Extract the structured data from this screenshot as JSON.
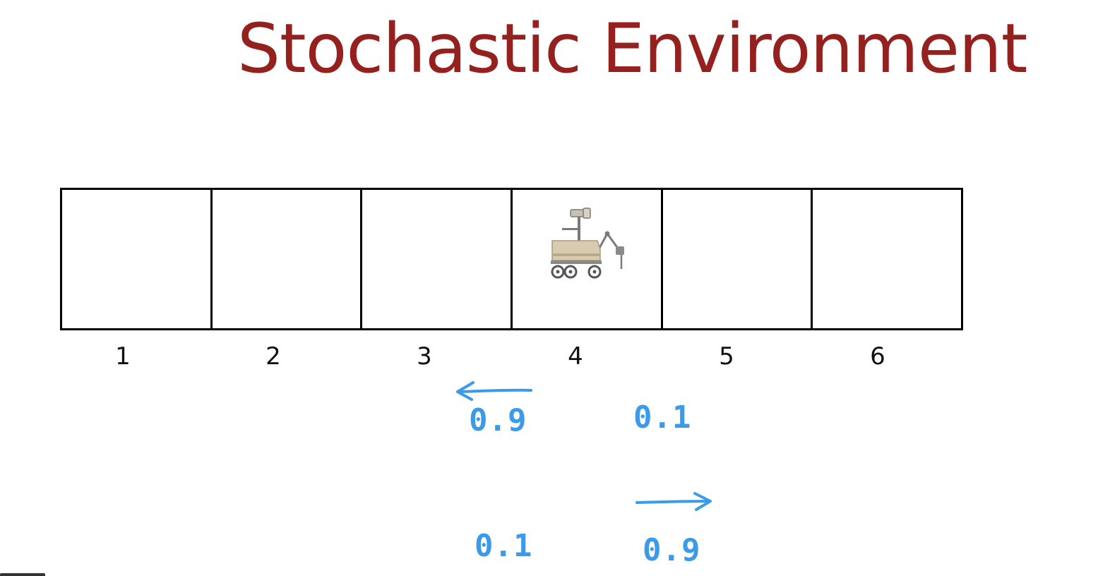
{
  "title": "Stochastic Environment",
  "states": [
    "1",
    "2",
    "3",
    "4",
    "5",
    "6"
  ],
  "rover_state": "4",
  "annotations": {
    "left_action": {
      "direction": "left",
      "intended_prob": "0.9",
      "opposite_prob": "0.1"
    },
    "right_action": {
      "direction": "right",
      "intended_prob": "0.9",
      "opposite_prob": "0.1"
    }
  },
  "colors": {
    "title": "#95211f",
    "annotation": "#3b9be8",
    "grid": "#000000"
  }
}
